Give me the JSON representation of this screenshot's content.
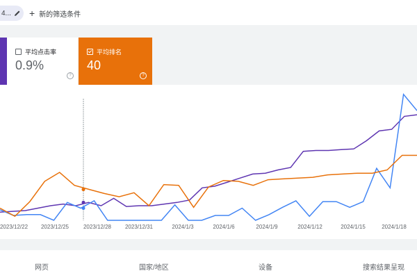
{
  "filters": {
    "chip_label": "4...",
    "add_filter_label": "新的筛选条件"
  },
  "metrics": {
    "ctr": {
      "label": "平均点击率",
      "value": "0.9%",
      "selected": false
    },
    "position": {
      "label": "平均排名",
      "value": "40",
      "selected": true
    }
  },
  "colors": {
    "clicks_series": "#5e35b1",
    "impressions_series": "#4285f4",
    "position_series": "#e8710a"
  },
  "chart_data": {
    "type": "line",
    "title": "",
    "x_ticks": [
      "2023/12/22",
      "2023/12/25",
      "2023/12/28",
      "2023/12/31",
      "2024/1/3",
      "2024/1/6",
      "2024/1/9",
      "2024/1/12",
      "2024/1/15",
      "2024/1/18"
    ],
    "series": [
      {
        "name": "series-purple",
        "color": "#5e35b1",
        "values": [
          0.1,
          0.11,
          0.12,
          0.15,
          0.18,
          0.2,
          0.18,
          0.22,
          0.18,
          0.27,
          0.17,
          0.18,
          0.18,
          0.2,
          0.22,
          0.25,
          0.4,
          0.42,
          0.47,
          0.52,
          0.57,
          0.58,
          0.62,
          0.65,
          0.85,
          0.86,
          0.86,
          0.87,
          0.88,
          0.98,
          1.1,
          1.12,
          1.28,
          1.3
        ]
      },
      {
        "name": "series-blue",
        "color": "#4285f4",
        "values": [
          0.13,
          0.06,
          0.07,
          0.07,
          0.0,
          0.22,
          0.15,
          0.24,
          0.0,
          0.0,
          0.0,
          0.0,
          0.0,
          0.19,
          0.0,
          0.0,
          0.06,
          0.06,
          0.15,
          0.0,
          0.07,
          0.16,
          0.24,
          0.05,
          0.23,
          0.23,
          0.16,
          0.23,
          0.64,
          0.4,
          1.55,
          1.35
        ]
      },
      {
        "name": "series-orange",
        "color": "#e8710a",
        "values": [
          0.15,
          0.05,
          0.23,
          0.48,
          0.59,
          0.43,
          0.38,
          0.33,
          0.29,
          0.34,
          0.18,
          0.44,
          0.43,
          0.16,
          0.41,
          0.49,
          0.48,
          0.43,
          0.5,
          0.51,
          0.52,
          0.53,
          0.56,
          0.57,
          0.58,
          0.58,
          0.62,
          0.8,
          0.8
        ]
      }
    ],
    "hover_marker_index_purple": 5,
    "ylim": [
      0,
      1.6
    ]
  },
  "tabs": [
    "网页",
    "国家/地区",
    "设备",
    "搜索结果呈现"
  ]
}
